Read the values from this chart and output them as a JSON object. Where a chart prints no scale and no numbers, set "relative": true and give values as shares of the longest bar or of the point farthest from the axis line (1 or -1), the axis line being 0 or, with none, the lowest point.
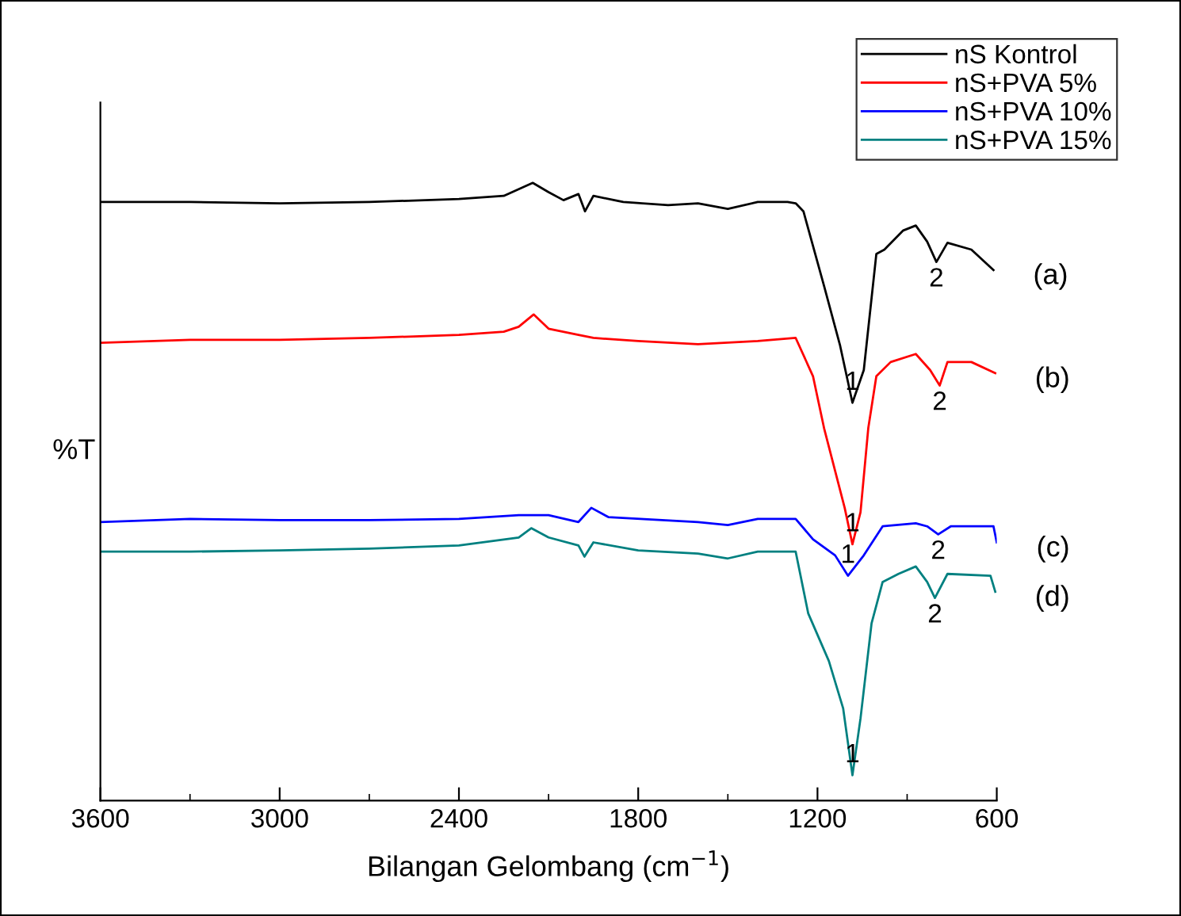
{
  "chart_data": {
    "type": "line",
    "relative": true,
    "xlabel": "Bilangan Gelombang (cm$^{−1}$)",
    "ylabel": "%T",
    "xlim": [
      3600,
      600
    ],
    "xticks": [
      3600,
      3000,
      2400,
      1800,
      1200,
      600
    ],
    "legend": "top right",
    "grid": false,
    "marker": "none",
    "line_style": "solid",
    "series": [
      {
        "name": "nS Kontrol",
        "color": "#000000",
        "x": [
          3600,
          3300,
          3000,
          2700,
          2400,
          2250,
          2153,
          2100,
          2050,
          2000,
          1978,
          1950,
          1850,
          1700,
          1600,
          1500,
          1400,
          1300,
          1273,
          1247,
          1178,
          1125,
          1083,
          1045,
          1003,
          976,
          913,
          871,
          833,
          802,
          765,
          685,
          611
        ],
        "values": [
          0.969,
          0.969,
          0.967,
          0.969,
          0.974,
          0.979,
          1.0,
          0.985,
          0.972,
          0.982,
          0.954,
          0.979,
          0.969,
          0.964,
          0.967,
          0.958,
          0.969,
          0.969,
          0.967,
          0.954,
          0.833,
          0.738,
          0.644,
          0.697,
          0.885,
          0.892,
          0.923,
          0.931,
          0.905,
          0.872,
          0.903,
          0.892,
          0.859
        ]
      },
      {
        "name": "nS+PVA 5%",
        "color": "#ff0000",
        "x": [
          3600,
          3300,
          3000,
          2700,
          2400,
          2250,
          2200,
          2150,
          2100,
          2000,
          1950,
          1800,
          1600,
          1400,
          1273,
          1215,
          1178,
          1109,
          1083,
          1056,
          1030,
          1003,
          955,
          871,
          823,
          791,
          765,
          685,
          605
        ],
        "values": [
          0.741,
          0.746,
          0.746,
          0.749,
          0.754,
          0.759,
          0.767,
          0.787,
          0.764,
          0.754,
          0.749,
          0.744,
          0.739,
          0.744,
          0.749,
          0.687,
          0.603,
          0.474,
          0.415,
          0.467,
          0.603,
          0.687,
          0.71,
          0.723,
          0.697,
          0.672,
          0.71,
          0.71,
          0.692
        ]
      },
      {
        "name": "nS+PVA 10%",
        "color": "#0000ff",
        "x": [
          3600,
          3300,
          3000,
          2700,
          2400,
          2200,
          2100,
          2000,
          1957,
          1900,
          1600,
          1500,
          1400,
          1273,
          1215,
          1141,
          1098,
          1045,
          982,
          871,
          833,
          796,
          754,
          611,
          600
        ],
        "values": [
          0.451,
          0.456,
          0.454,
          0.454,
          0.456,
          0.462,
          0.462,
          0.451,
          0.474,
          0.459,
          0.451,
          0.446,
          0.456,
          0.456,
          0.423,
          0.397,
          0.364,
          0.397,
          0.444,
          0.449,
          0.444,
          0.431,
          0.444,
          0.444,
          0.418
        ]
      },
      {
        "name": "nS+PVA 15%",
        "color": "#008080",
        "x": [
          3600,
          3300,
          3000,
          2700,
          2400,
          2200,
          2158,
          2100,
          2000,
          1980,
          1950,
          1800,
          1600,
          1500,
          1400,
          1273,
          1231,
          1162,
          1114,
          1083,
          1056,
          1019,
          982,
          929,
          871,
          833,
          807,
          765,
          621,
          605
        ],
        "values": [
          0.403,
          0.403,
          0.405,
          0.408,
          0.413,
          0.426,
          0.441,
          0.426,
          0.413,
          0.395,
          0.418,
          0.405,
          0.4,
          0.392,
          0.403,
          0.403,
          0.303,
          0.226,
          0.149,
          0.041,
          0.133,
          0.287,
          0.354,
          0.367,
          0.379,
          0.354,
          0.328,
          0.367,
          0.364,
          0.338
        ]
      }
    ],
    "annotations": [
      {
        "text": "1",
        "x": 1083,
        "y": 0.644
      },
      {
        "text": "2",
        "x": 802,
        "y": 0.872
      },
      {
        "text": "1",
        "x": 1083,
        "y": 0.415
      },
      {
        "text": "2",
        "x": 791,
        "y": 0.672
      },
      {
        "text": "1",
        "x": 1098,
        "y": 0.364
      },
      {
        "text": "2",
        "x": 796,
        "y": 0.431
      },
      {
        "text": "1",
        "x": 1083,
        "y": 0.041
      },
      {
        "text": "2",
        "x": 807,
        "y": 0.328
      },
      {
        "text": "(a)",
        "x": 611,
        "y": 0.859
      },
      {
        "text": "(b)",
        "x": 605,
        "y": 0.692
      },
      {
        "text": "(c)",
        "x": 600,
        "y": 0.418
      },
      {
        "text": "(d)",
        "x": 605,
        "y": 0.338
      }
    ]
  }
}
